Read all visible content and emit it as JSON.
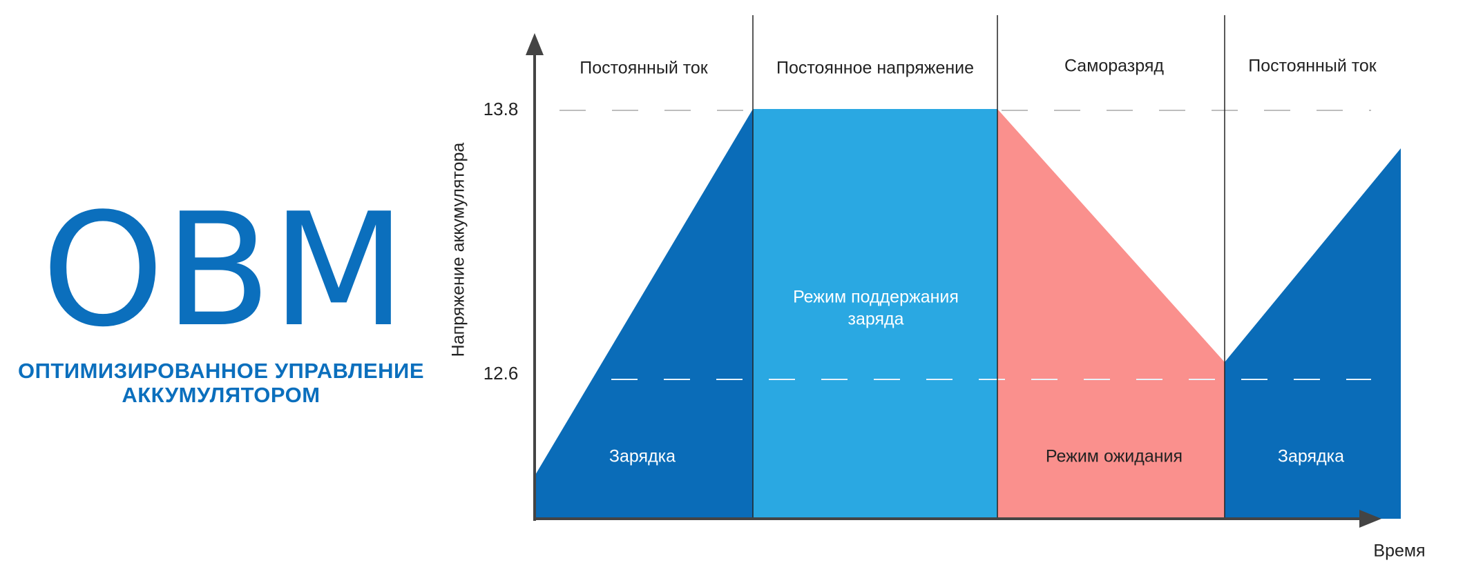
{
  "logo": {
    "acronym": "ОВМ",
    "subtitle_line1": "ОПТИМИЗИРОВАННОЕ УПРАВЛЕНИЕ",
    "subtitle_line2": "АККУМУЛЯТОРОМ",
    "color": "#0b6fbd"
  },
  "axes": {
    "y_label": "Напряжение аккумулятора",
    "x_label": "Время",
    "y_tick_high": "13.8",
    "y_tick_low": "12.6"
  },
  "phases": [
    {
      "label": "Постоянный ток"
    },
    {
      "label": "Постоянное напряжение"
    },
    {
      "label": "Саморазряд"
    },
    {
      "label": "Постоянный ток"
    }
  ],
  "regions": [
    {
      "label_line1": "Зарядка",
      "label_line2": "",
      "color": "#0a6cb8"
    },
    {
      "label_line1": "Режим поддержания",
      "label_line2": "заряда",
      "color": "#2aa8e2"
    },
    {
      "label_line1": "Режим ожидания",
      "label_line2": "",
      "color": "#fa908d"
    },
    {
      "label_line1": "Зарядка",
      "label_line2": "",
      "color": "#0a6cb8"
    }
  ],
  "colors": {
    "axis": "#444444",
    "divider": "#222222",
    "dashed": "#bdbdbd",
    "text": "#222222",
    "region_text": "#ffffff"
  }
}
